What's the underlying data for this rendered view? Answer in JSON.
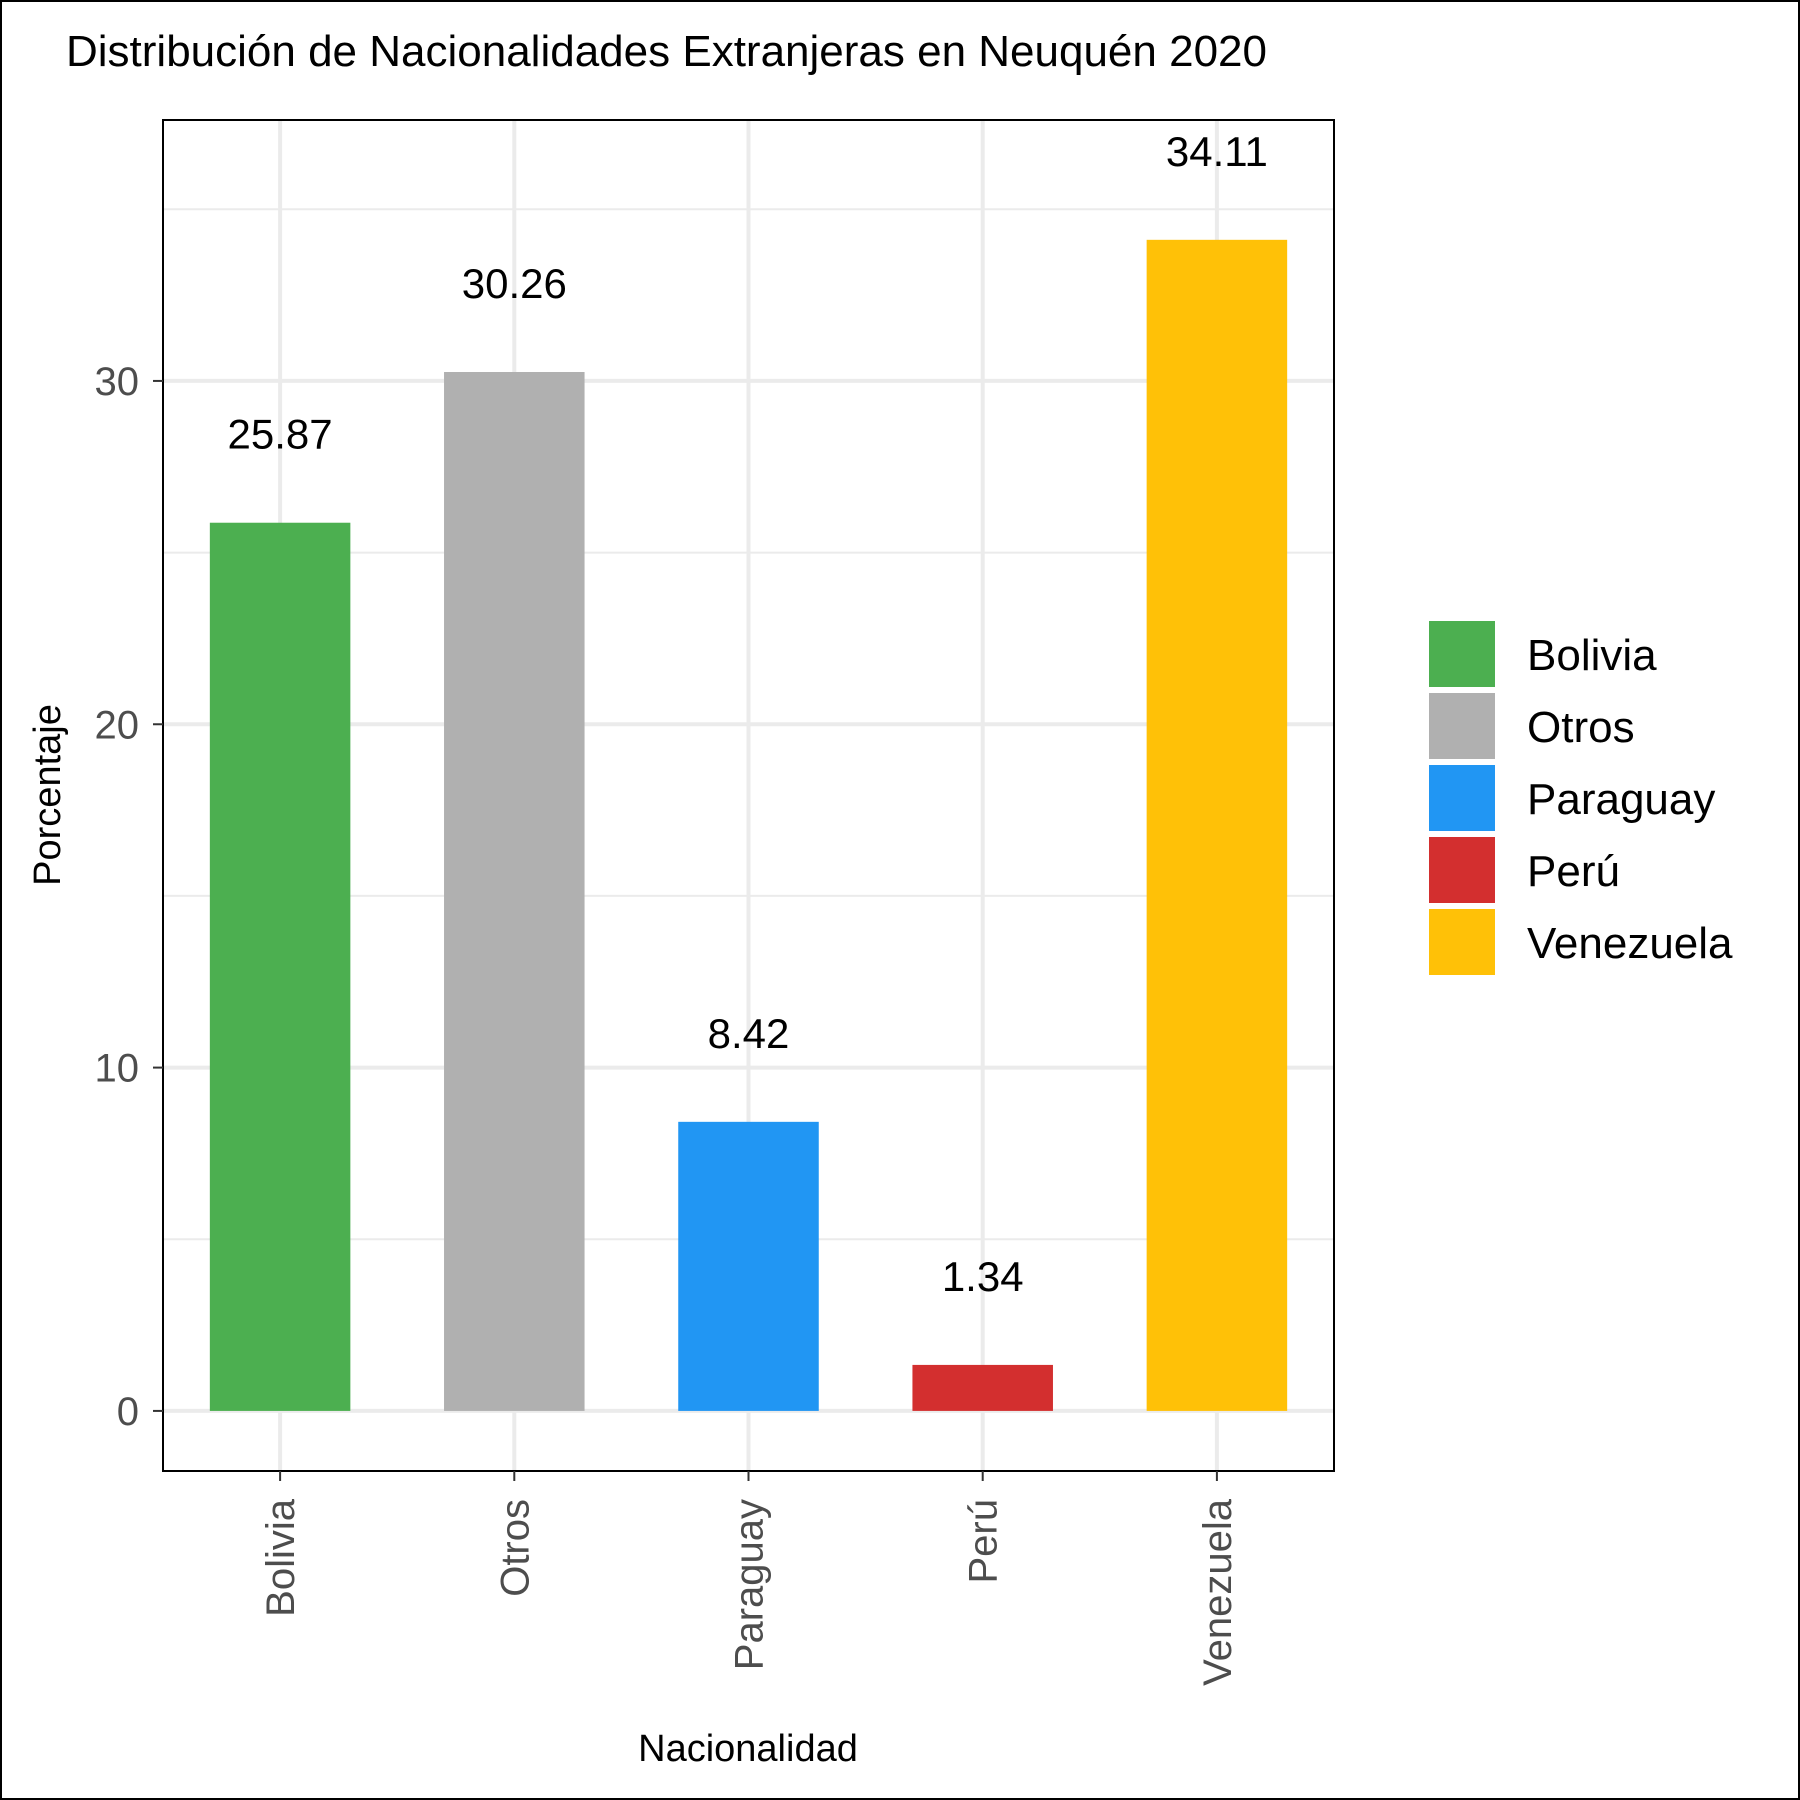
{
  "chart_data": {
    "type": "bar",
    "title": "Distribución de Nacionalidades Extranjeras en Neuquén 2020",
    "xlabel": "Nacionalidad",
    "ylabel": "Porcentaje",
    "categories": [
      "Bolivia",
      "Otros",
      "Paraguay",
      "Perú",
      "Venezuela"
    ],
    "values": [
      25.87,
      30.26,
      8.42,
      1.34,
      34.11
    ],
    "value_labels": [
      "25.87",
      "30.26",
      "8.42",
      "1.34",
      "34.11"
    ],
    "colors": [
      "#4caf50",
      "#b0b0b0",
      "#2196f3",
      "#d32f2f",
      "#ffc107"
    ],
    "y_ticks": [
      0,
      10,
      20,
      30
    ],
    "ylim": [
      -1.75,
      37.6
    ],
    "grid": true,
    "legend": {
      "placement": "right",
      "entries": [
        "Bolivia",
        "Otros",
        "Paraguay",
        "Perú",
        "Venezuela"
      ]
    }
  }
}
